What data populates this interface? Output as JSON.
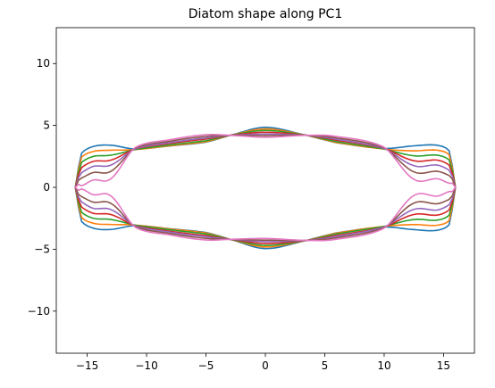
{
  "chart_data": {
    "type": "line",
    "title": "Diatom shape along PC1",
    "xlabel": "",
    "ylabel": "",
    "xlim": [
      -17.6,
      17.6
    ],
    "ylim": [
      -13.4,
      12.9
    ],
    "xticks": [
      -15,
      -10,
      -5,
      0,
      5,
      10,
      15
    ],
    "yticks": [
      -10,
      -5,
      0,
      5,
      10
    ],
    "xtick_labels": [
      "−15",
      "−10",
      "−5",
      "0",
      "5",
      "10",
      "15"
    ],
    "ytick_labels": [
      "−10",
      "−5",
      "0",
      "5",
      "10"
    ],
    "grid": false,
    "legend": "none",
    "series": [
      {
        "color": "#1f77b4",
        "shape": {
          "c": 4.85,
          "e": 3.0,
          "m": -0.5,
          "q": 3.4,
          "d": 3.1,
          "dip": 0.2
        }
      },
      {
        "color": "#ff7f0e",
        "shape": {
          "c": 4.72,
          "e": 2.95,
          "m": -0.33,
          "q": 3.0,
          "d": 2.8,
          "dip": 0.2
        }
      },
      {
        "color": "#2ca02c",
        "shape": {
          "c": 4.6,
          "e": 2.95,
          "m": -0.17,
          "q": 2.6,
          "d": 2.4,
          "dip": 0.3
        }
      },
      {
        "color": "#d62728",
        "shape": {
          "c": 4.45,
          "e": 3.0,
          "m": 0.0,
          "q": 2.2,
          "d": 2.0,
          "dip": 0.4
        }
      },
      {
        "color": "#9467bd",
        "shape": {
          "c": 4.3,
          "e": 3.0,
          "m": 0.17,
          "q": 1.8,
          "d": 1.6,
          "dip": 0.5
        }
      },
      {
        "color": "#8c564b",
        "shape": {
          "c": 4.18,
          "e": 3.05,
          "m": 0.33,
          "q": 1.3,
          "d": 1.2,
          "dip": 0.6
        }
      },
      {
        "color": "#e377c2",
        "shape": {
          "c": 4.05,
          "e": 3.1,
          "m": 0.5,
          "q": 0.7,
          "d": 0.6,
          "dip": 0.7
        }
      }
    ]
  }
}
